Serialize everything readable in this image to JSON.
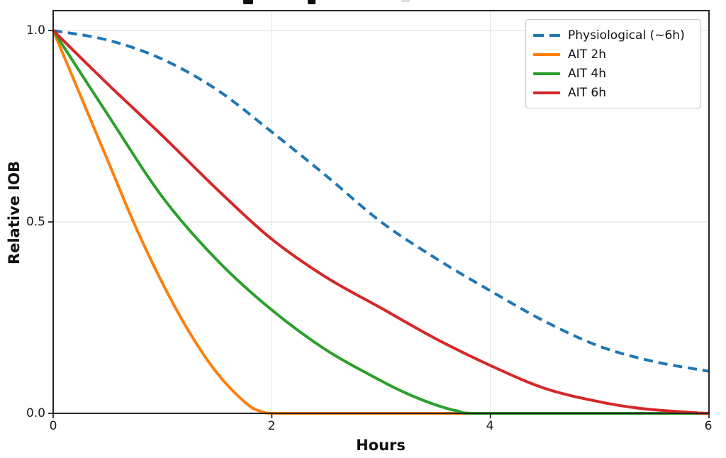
{
  "chart_data": {
    "type": "line",
    "xlabel": "Hours",
    "ylabel": "Relative IOB",
    "xlim": [
      0,
      6
    ],
    "ylim": [
      0,
      1.052
    ],
    "xticks": [
      0,
      2,
      4,
      6
    ],
    "yticks": [
      0,
      0.5,
      1.0
    ],
    "xtick_labels": [
      "0",
      "2",
      "4",
      "6"
    ],
    "ytick_labels": [
      "0.0",
      "0.5",
      "1.0"
    ],
    "grid": true,
    "legend_position": "upper-right",
    "series": [
      {
        "name": "Physiological (~6h)",
        "color": "#1f77b4",
        "dash": true,
        "points": [
          [
            0,
            1.0
          ],
          [
            0.5,
            0.975
          ],
          [
            1,
            0.925
          ],
          [
            1.5,
            0.845
          ],
          [
            2,
            0.735
          ],
          [
            2.5,
            0.62
          ],
          [
            3,
            0.5
          ],
          [
            3.5,
            0.405
          ],
          [
            4,
            0.32
          ],
          [
            4.5,
            0.24
          ],
          [
            5,
            0.175
          ],
          [
            5.5,
            0.135
          ],
          [
            6,
            0.11
          ]
        ]
      },
      {
        "name": "AIT 2h",
        "color": "#ff7f0e",
        "dash": false,
        "points": [
          [
            0,
            1.0
          ],
          [
            0.25,
            0.83
          ],
          [
            0.5,
            0.66
          ],
          [
            0.75,
            0.49
          ],
          [
            1,
            0.34
          ],
          [
            1.25,
            0.21
          ],
          [
            1.5,
            0.105
          ],
          [
            1.75,
            0.03
          ],
          [
            1.9,
            0.005
          ],
          [
            2.1,
            0
          ],
          [
            6,
            0
          ]
        ]
      },
      {
        "name": "AIT 4h",
        "color": "#2ca02c",
        "dash": false,
        "points": [
          [
            0,
            1.0
          ],
          [
            0.5,
            0.78
          ],
          [
            1,
            0.565
          ],
          [
            1.5,
            0.4
          ],
          [
            2,
            0.27
          ],
          [
            2.5,
            0.165
          ],
          [
            3,
            0.085
          ],
          [
            3.25,
            0.05
          ],
          [
            3.5,
            0.022
          ],
          [
            3.7,
            0.006
          ],
          [
            3.85,
            0
          ],
          [
            6,
            0
          ]
        ]
      },
      {
        "name": "AIT 6h",
        "color": "#d62728",
        "dash": false,
        "points": [
          [
            0,
            1.0
          ],
          [
            0.5,
            0.86
          ],
          [
            1,
            0.725
          ],
          [
            1.5,
            0.585
          ],
          [
            2,
            0.455
          ],
          [
            2.5,
            0.355
          ],
          [
            3,
            0.275
          ],
          [
            3.5,
            0.195
          ],
          [
            4,
            0.125
          ],
          [
            4.5,
            0.065
          ],
          [
            5,
            0.03
          ],
          [
            5.4,
            0.012
          ],
          [
            5.9,
            0.001
          ],
          [
            6,
            0
          ]
        ]
      }
    ]
  }
}
